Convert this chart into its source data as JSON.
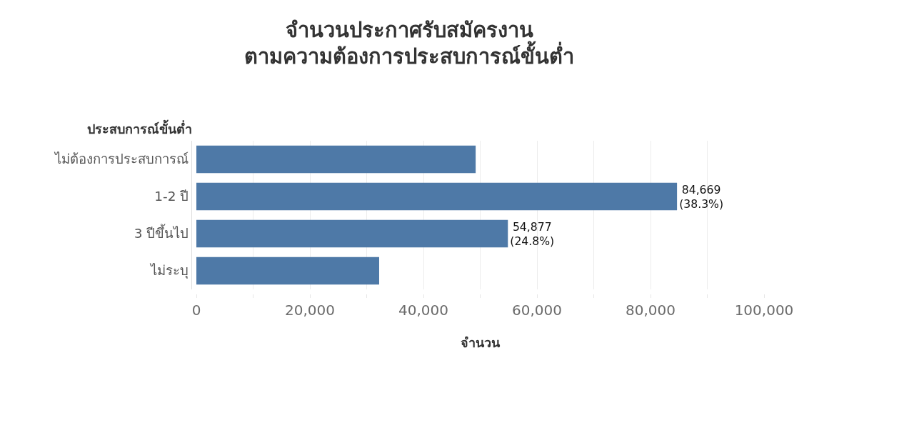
{
  "chart_data": {
    "type": "bar",
    "orientation": "horizontal",
    "title": "จำนวนประกาศรับสมัครงาน\nตามความต้องการประสบการณ์ขั้นต่ำ",
    "ylabel": "ประสบการณ์ขั้นต่ำ",
    "xlabel": "จำนวน",
    "categories": [
      "ไม่ต้องการประสบการณ์",
      "1-2 ปี",
      "3 ปีขึ้นไป",
      "ไม่ระบุ"
    ],
    "values": [
      49200,
      84669,
      54877,
      32200
    ],
    "value_labels": [
      null,
      "84,669\n(38.3%)",
      "54,877\n(24.8%)",
      null
    ],
    "color": "#4e79a7",
    "xlim": [
      0,
      100000
    ],
    "xticks": [
      0,
      {
        "value": 10000,
        "label": null
      },
      {
        "value": 20000,
        "label": "20,000"
      },
      {
        "value": 30000,
        "label": null
      },
      {
        "value": 40000,
        "label": "40,000"
      },
      {
        "value": 50000,
        "label": null
      },
      {
        "value": 60000,
        "label": "60,000"
      },
      {
        "value": 70000,
        "label": null
      },
      {
        "value": 80000,
        "label": "80,000"
      },
      {
        "value": 90000,
        "label": null
      },
      {
        "value": 100000,
        "label": "100,000"
      }
    ],
    "grid": "x"
  }
}
